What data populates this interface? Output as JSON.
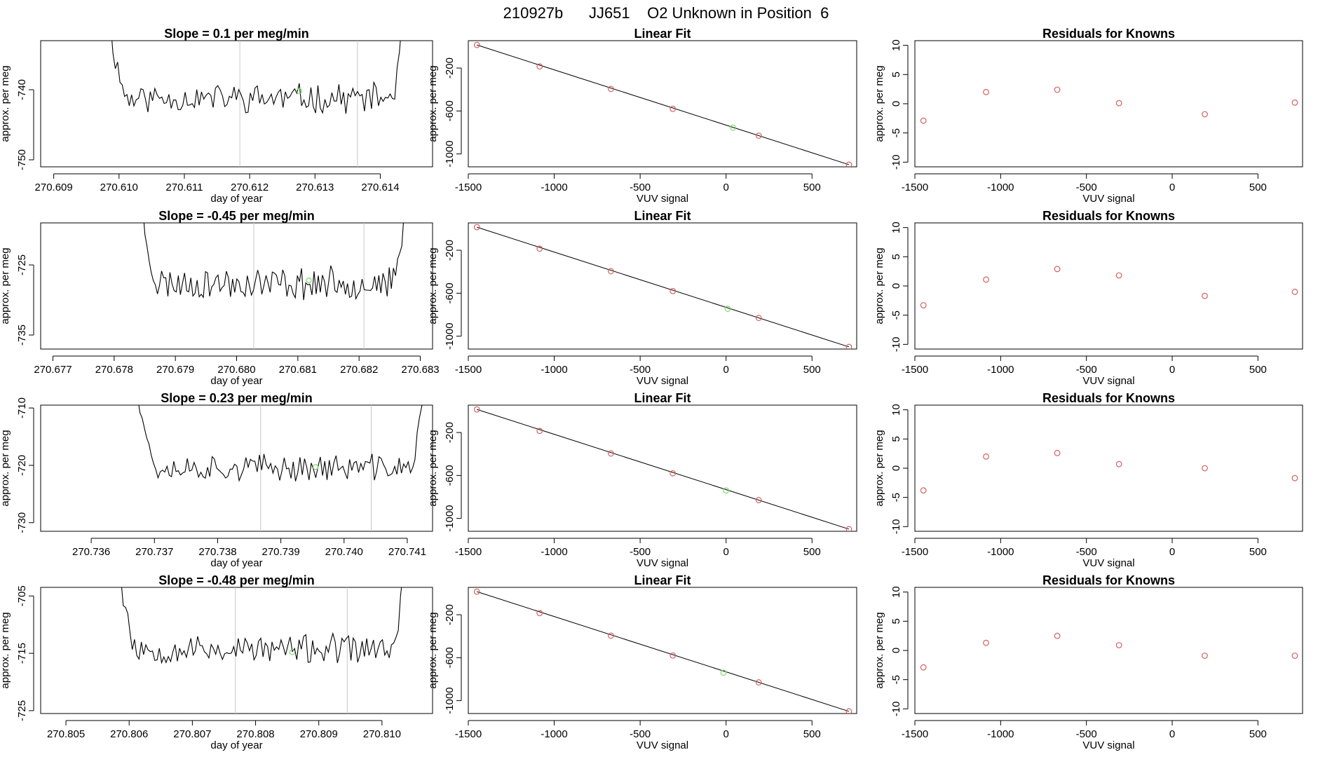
{
  "page_title": "210927b      JJ651    O2 Unknown in Position  6",
  "chart_data": [
    {
      "type": "line",
      "panel": "timeseries",
      "title": "Slope =  0.1  per meg/min",
      "xlabel": "day of year",
      "ylabel": "approx. per meg",
      "xlim": [
        270.6088,
        270.6148
      ],
      "ylim": [
        -751,
        -733
      ],
      "xticks": [
        270.609,
        270.61,
        270.611,
        270.612,
        270.613,
        270.614
      ],
      "xtick_labels": [
        "270.609",
        "270.610",
        "270.611",
        "270.612",
        "270.613",
        "270.614"
      ],
      "yticks": [
        -740,
        -750
      ],
      "ytick_labels": [
        "-740",
        "-750"
      ],
      "vlines": [
        270.61185,
        270.61365
      ],
      "x_start": 270.6098,
      "x_end": 270.6144,
      "trace_points": 130,
      "baseline": -741.2,
      "noise_amplitude": 1.8,
      "seed": 11,
      "marker": {
        "x": 270.61276,
        "y": -740.2,
        "color": "#7fd96f"
      },
      "line_color": "#000000"
    },
    {
      "type": "scatter",
      "panel": "fit",
      "title": "Linear Fit",
      "xlabel": "VUV signal",
      "ylabel": "approx. per meg",
      "xlim": [
        -1500,
        760
      ],
      "ylim": [
        -1120,
        55
      ],
      "xticks": [
        -1500,
        -1000,
        -500,
        0,
        500
      ],
      "xtick_labels": [
        "-1500",
        "-1000",
        "-500",
        "0",
        "500"
      ],
      "yticks": [
        -200,
        -600,
        -1000
      ],
      "ytick_labels": [
        "-200",
        "-600",
        "-1000"
      ],
      "x": [
        -1450,
        -1085,
        -670,
        -310,
        190,
        715
      ],
      "y": [
        15,
        -185,
        -395,
        -580,
        -830,
        -1100
      ],
      "fit_line": [
        [
          -1450,
          15
        ],
        [
          715,
          -1100
        ]
      ],
      "unknown": {
        "x": 40,
        "y": -755,
        "color": "#7fd96f"
      },
      "point_color": "#d46060"
    },
    {
      "type": "scatter",
      "panel": "residuals",
      "title": "Residuals for Knowns",
      "xlabel": "VUV signal",
      "ylabel": "approx. per meg",
      "xlim": [
        -1500,
        760
      ],
      "ylim": [
        -10.8,
        10.8
      ],
      "xticks": [
        -1500,
        -1000,
        -500,
        0,
        500
      ],
      "xtick_labels": [
        "-1500",
        "-1000",
        "-500",
        "0",
        "500"
      ],
      "yticks": [
        10,
        5,
        0,
        -5,
        -10
      ],
      "ytick_labels": [
        "10",
        "5",
        "0",
        "-5",
        "-10"
      ],
      "x": [
        -1450,
        -1085,
        -670,
        -310,
        190,
        715
      ],
      "y": [
        -2.9,
        2.0,
        2.4,
        0.1,
        -1.8,
        0.2
      ],
      "point_color": "#d46060"
    },
    {
      "type": "line",
      "panel": "timeseries",
      "title": "Slope =  -0.45  per meg/min",
      "xlabel": "day of year",
      "ylabel": "approx. per meg",
      "xlim": [
        270.6768,
        270.6832
      ],
      "ylim": [
        -737,
        -719
      ],
      "xticks": [
        270.677,
        270.678,
        270.679,
        270.68,
        270.681,
        270.682,
        270.683
      ],
      "xtick_labels": [
        "270.677",
        "270.678",
        "270.679",
        "270.680",
        "270.681",
        "270.682",
        "270.683"
      ],
      "yticks": [
        -725,
        -735
      ],
      "ytick_labels": [
        "-725",
        "-735"
      ],
      "vlines": [
        270.68028,
        270.68208
      ],
      "x_start": 270.6784,
      "x_end": 270.6828,
      "trace_points": 130,
      "baseline": -727.6,
      "noise_amplitude": 2.0,
      "seed": 23,
      "marker": {
        "x": 270.68118,
        "y": -727.2,
        "color": "#7fd96f"
      },
      "line_color": "#000000"
    },
    {
      "type": "scatter",
      "panel": "fit",
      "title": "Linear Fit",
      "xlabel": "VUV signal",
      "ylabel": "approx. per meg",
      "xlim": [
        -1500,
        760
      ],
      "ylim": [
        -1120,
        55
      ],
      "xticks": [
        -1500,
        -1000,
        -500,
        0,
        500
      ],
      "xtick_labels": [
        "-1500",
        "-1000",
        "-500",
        "0",
        "500"
      ],
      "yticks": [
        -200,
        -600,
        -1000
      ],
      "ytick_labels": [
        "-200",
        "-600",
        "-1000"
      ],
      "x": [
        -1450,
        -1085,
        -670,
        -310,
        190,
        715
      ],
      "y": [
        15,
        -185,
        -395,
        -580,
        -830,
        -1100
      ],
      "fit_line": [
        [
          -1450,
          15
        ],
        [
          715,
          -1100
        ]
      ],
      "unknown": {
        "x": 10,
        "y": -745,
        "color": "#7fd96f"
      },
      "point_color": "#d46060"
    },
    {
      "type": "scatter",
      "panel": "residuals",
      "title": "Residuals for Knowns",
      "xlabel": "VUV signal",
      "ylabel": "approx. per meg",
      "xlim": [
        -1500,
        760
      ],
      "ylim": [
        -10.8,
        10.8
      ],
      "xticks": [
        -1500,
        -1000,
        -500,
        0,
        500
      ],
      "xtick_labels": [
        "-1500",
        "-1000",
        "-500",
        "0",
        "500"
      ],
      "yticks": [
        10,
        5,
        0,
        -5,
        -10
      ],
      "ytick_labels": [
        "10",
        "5",
        "0",
        "-5",
        "-10"
      ],
      "x": [
        -1450,
        -1085,
        -670,
        -310,
        190,
        715
      ],
      "y": [
        -3.3,
        1.1,
        2.9,
        1.8,
        -1.7,
        -1.0
      ],
      "point_color": "#d46060"
    },
    {
      "type": "line",
      "panel": "timeseries",
      "title": "Slope =  0.23  per meg/min",
      "xlabel": "day of year",
      "ylabel": "approx. per meg",
      "xlim": [
        270.7352,
        270.7414
      ],
      "ylim": [
        -731.5,
        -709.5
      ],
      "xticks": [
        270.736,
        270.737,
        270.738,
        270.739,
        270.74,
        270.741
      ],
      "xtick_labels": [
        "270.736",
        "270.737",
        "270.738",
        "270.739",
        "270.740",
        "270.741"
      ],
      "yticks": [
        -710,
        -720,
        -730
      ],
      "ytick_labels": [
        "-710",
        "-720",
        "-730"
      ],
      "vlines": [
        270.73868,
        270.74043
      ],
      "x_start": 270.7367,
      "x_end": 270.7413,
      "trace_points": 130,
      "baseline": -720.4,
      "noise_amplitude": 2.0,
      "seed": 37,
      "marker": {
        "x": 270.73955,
        "y": -720.3,
        "color": "#7fd96f"
      },
      "line_color": "#000000"
    },
    {
      "type": "scatter",
      "panel": "fit",
      "title": "Linear Fit",
      "xlabel": "VUV signal",
      "ylabel": "approx. per meg",
      "xlim": [
        -1500,
        760
      ],
      "ylim": [
        -1120,
        55
      ],
      "xticks": [
        -1500,
        -1000,
        -500,
        0,
        500
      ],
      "xtick_labels": [
        "-1500",
        "-1000",
        "-500",
        "0",
        "500"
      ],
      "yticks": [
        -200,
        -600,
        -1000
      ],
      "ytick_labels": [
        "-200",
        "-600",
        "-1000"
      ],
      "x": [
        -1450,
        -1085,
        -670,
        -310,
        190,
        715
      ],
      "y": [
        15,
        -185,
        -395,
        -580,
        -830,
        -1100
      ],
      "fit_line": [
        [
          -1450,
          15
        ],
        [
          715,
          -1100
        ]
      ],
      "unknown": {
        "x": 0,
        "y": -740,
        "color": "#7fd96f"
      },
      "point_color": "#d46060"
    },
    {
      "type": "scatter",
      "panel": "residuals",
      "title": "Residuals for Knowns",
      "xlabel": "VUV signal",
      "ylabel": "approx. per meg",
      "xlim": [
        -1500,
        760
      ],
      "ylim": [
        -10.8,
        10.8
      ],
      "xticks": [
        -1500,
        -1000,
        -500,
        0,
        500
      ],
      "xtick_labels": [
        "-1500",
        "-1000",
        "-500",
        "0",
        "500"
      ],
      "yticks": [
        10,
        5,
        0,
        -5,
        -10
      ],
      "ytick_labels": [
        "10",
        "5",
        "0",
        "-5",
        "-10"
      ],
      "x": [
        -1450,
        -1085,
        -670,
        -310,
        190,
        715
      ],
      "y": [
        -3.8,
        2.0,
        2.6,
        0.7,
        0.0,
        -1.7
      ],
      "point_color": "#d46060"
    },
    {
      "type": "line",
      "panel": "timeseries",
      "title": "Slope =  -0.48  per meg/min",
      "xlabel": "day of year",
      "ylabel": "approx. per meg",
      "xlim": [
        270.8046,
        270.8108
      ],
      "ylim": [
        -725.5,
        -703.5
      ],
      "xticks": [
        270.805,
        270.806,
        270.807,
        270.808,
        270.809,
        270.81
      ],
      "xtick_labels": [
        "270.805",
        "270.806",
        "270.807",
        "270.808",
        "270.809",
        "270.810"
      ],
      "yticks": [
        -705,
        -715,
        -725
      ],
      "ytick_labels": [
        "-705",
        "-715",
        "-725"
      ],
      "vlines": [
        270.80768,
        270.80945
      ],
      "x_start": 270.8058,
      "x_end": 270.8104,
      "trace_points": 130,
      "baseline": -714.3,
      "noise_amplitude": 2.2,
      "seed": 53,
      "marker": {
        "x": 270.80858,
        "y": -714.8,
        "color": "#7fd96f"
      },
      "line_color": "#000000"
    },
    {
      "type": "scatter",
      "panel": "fit",
      "title": "Linear Fit",
      "xlabel": "VUV signal",
      "ylabel": "approx. per meg",
      "xlim": [
        -1500,
        760
      ],
      "ylim": [
        -1120,
        55
      ],
      "xticks": [
        -1500,
        -1000,
        -500,
        0,
        500
      ],
      "xtick_labels": [
        "-1500",
        "-1000",
        "-500",
        "0",
        "500"
      ],
      "yticks": [
        -200,
        -600,
        -1000
      ],
      "ytick_labels": [
        "-200",
        "-600",
        "-1000"
      ],
      "x": [
        -1450,
        -1085,
        -670,
        -310,
        190,
        715
      ],
      "y": [
        15,
        -185,
        -395,
        -580,
        -830,
        -1100
      ],
      "fit_line": [
        [
          -1450,
          15
        ],
        [
          715,
          -1100
        ]
      ],
      "unknown": {
        "x": -15,
        "y": -740,
        "color": "#7fd96f"
      },
      "point_color": "#d46060"
    },
    {
      "type": "scatter",
      "panel": "residuals",
      "title": "Residuals for Knowns",
      "xlabel": "VUV signal",
      "ylabel": "approx. per meg",
      "xlim": [
        -1500,
        760
      ],
      "ylim": [
        -10.8,
        10.8
      ],
      "xticks": [
        -1500,
        -1000,
        -500,
        0,
        500
      ],
      "xtick_labels": [
        "-1500",
        "-1000",
        "-500",
        "0",
        "500"
      ],
      "yticks": [
        10,
        5,
        0,
        -5,
        -10
      ],
      "ytick_labels": [
        "10",
        "5",
        "0",
        "-5",
        "-10"
      ],
      "x": [
        -1450,
        -1085,
        -670,
        -310,
        190,
        715
      ],
      "y": [
        -2.9,
        1.3,
        2.5,
        0.9,
        -0.9,
        -0.9
      ],
      "point_color": "#d46060"
    }
  ]
}
